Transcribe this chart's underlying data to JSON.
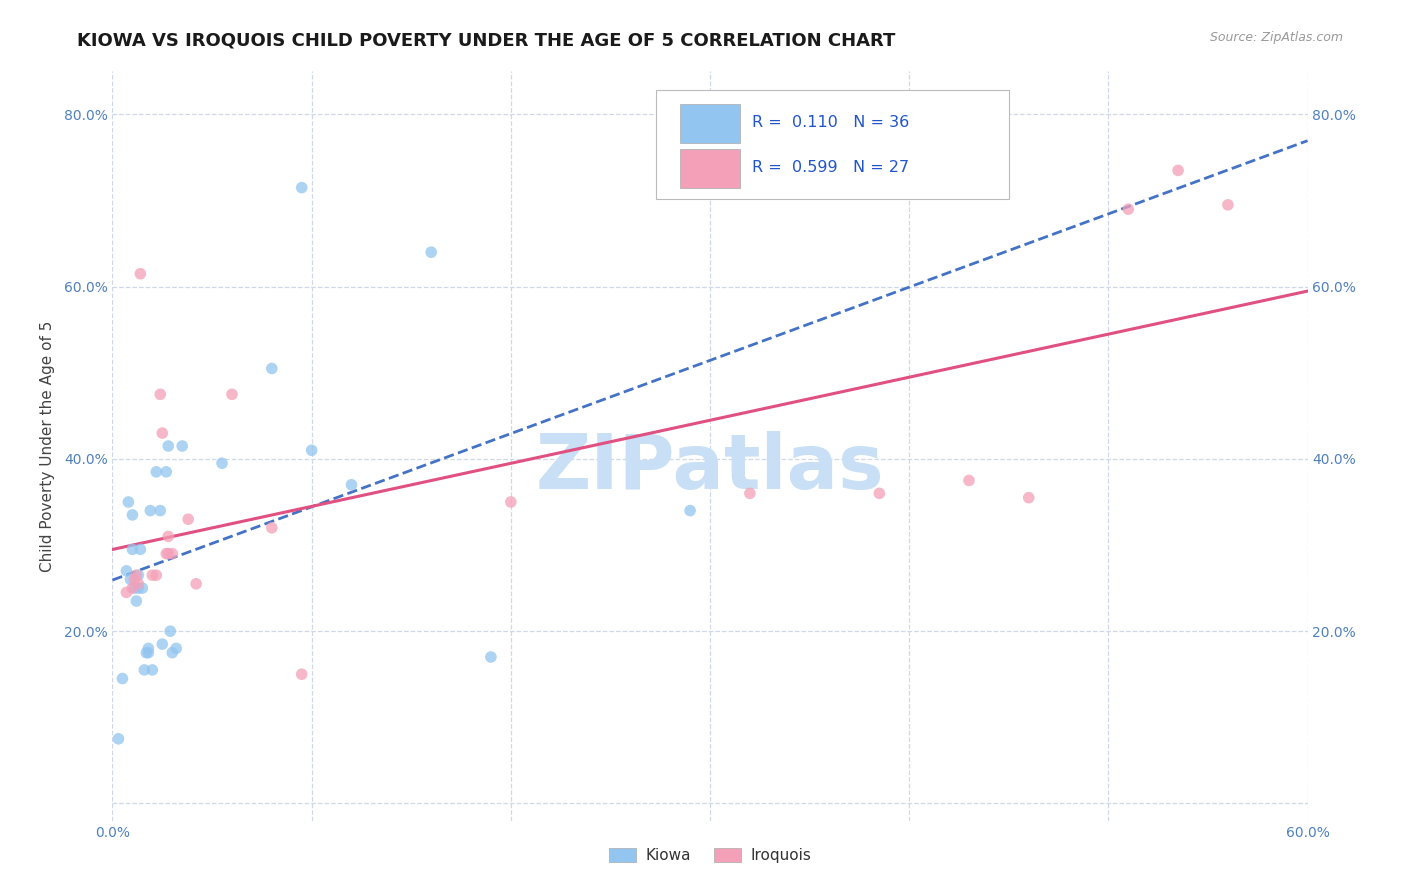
{
  "title": "KIOWA VS IROQUOIS CHILD POVERTY UNDER THE AGE OF 5 CORRELATION CHART",
  "source": "Source: ZipAtlas.com",
  "ylabel": "Child Poverty Under the Age of 5",
  "xlim": [
    0,
    0.6
  ],
  "ylim": [
    -0.02,
    0.85
  ],
  "xticks": [
    0.0,
    0.1,
    0.2,
    0.3,
    0.4,
    0.5,
    0.6
  ],
  "yticks": [
    0.0,
    0.2,
    0.4,
    0.6,
    0.8
  ],
  "xtick_labels": [
    "0.0%",
    "",
    "",
    "",
    "",
    "",
    "60.0%"
  ],
  "ytick_labels": [
    "",
    "20.0%",
    "40.0%",
    "60.0%",
    "80.0%"
  ],
  "kiowa_R": "0.110",
  "kiowa_N": "36",
  "iroquois_R": "0.599",
  "iroquois_N": "27",
  "kiowa_color": "#92c5f0",
  "iroquois_color": "#f4a0b8",
  "kiowa_line_color": "#4472c4",
  "iroquois_line_color": "#e05080",
  "watermark": "ZIPatlas",
  "watermark_color": "#c8dff5",
  "kiowa_x": [
    0.003,
    0.005,
    0.007,
    0.008,
    0.009,
    0.01,
    0.01,
    0.011,
    0.012,
    0.013,
    0.013,
    0.014,
    0.015,
    0.016,
    0.017,
    0.018,
    0.018,
    0.019,
    0.02,
    0.022,
    0.024,
    0.025,
    0.027,
    0.028,
    0.029,
    0.03,
    0.032,
    0.035,
    0.055,
    0.08,
    0.095,
    0.1,
    0.12,
    0.16,
    0.19,
    0.29
  ],
  "kiowa_y": [
    0.075,
    0.145,
    0.27,
    0.35,
    0.26,
    0.295,
    0.335,
    0.25,
    0.235,
    0.25,
    0.265,
    0.295,
    0.25,
    0.155,
    0.175,
    0.175,
    0.18,
    0.34,
    0.155,
    0.385,
    0.34,
    0.185,
    0.385,
    0.415,
    0.2,
    0.175,
    0.18,
    0.415,
    0.395,
    0.505,
    0.715,
    0.41,
    0.37,
    0.64,
    0.17,
    0.34
  ],
  "iroquois_x": [
    0.007,
    0.01,
    0.011,
    0.012,
    0.013,
    0.014,
    0.02,
    0.022,
    0.024,
    0.025,
    0.027,
    0.028,
    0.028,
    0.03,
    0.038,
    0.042,
    0.06,
    0.08,
    0.095,
    0.2,
    0.32,
    0.385,
    0.43,
    0.46,
    0.51,
    0.535,
    0.56
  ],
  "iroquois_y": [
    0.245,
    0.25,
    0.26,
    0.265,
    0.255,
    0.615,
    0.265,
    0.265,
    0.475,
    0.43,
    0.29,
    0.29,
    0.31,
    0.29,
    0.33,
    0.255,
    0.475,
    0.32,
    0.15,
    0.35,
    0.36,
    0.36,
    0.375,
    0.355,
    0.69,
    0.735,
    0.695
  ],
  "background_color": "#ffffff",
  "grid_color": "#d0d8e8",
  "title_fontsize": 13,
  "label_fontsize": 11,
  "tick_fontsize": 10,
  "marker_size": 70,
  "marker_alpha": 0.75
}
